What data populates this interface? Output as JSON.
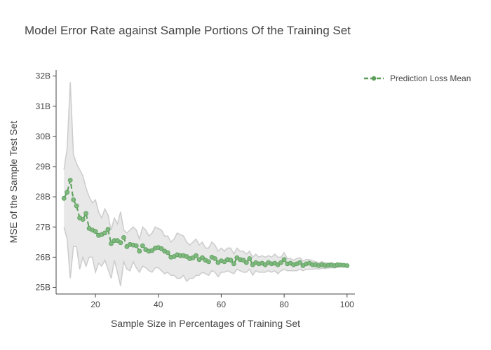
{
  "chart_data": {
    "type": "line",
    "title": "Model Error Rate against Sample Portions Of the Training Set",
    "xlabel": "Sample Size in Percentages of Training Set",
    "ylabel": "MSE of the Sample Test Set",
    "xlim": [
      7.5,
      102.5
    ],
    "ylim": [
      24.78,
      32.2
    ],
    "x_ticks": [
      20,
      40,
      60,
      80,
      100
    ],
    "y_ticks": [
      25,
      26,
      27,
      28,
      29,
      30,
      31,
      32
    ],
    "y_tick_labels": [
      "25B",
      "26B",
      "27B",
      "28B",
      "29B",
      "30B",
      "31B",
      "32B"
    ],
    "grid": false,
    "legend_position": "top-right",
    "series": [
      {
        "name": "Prediction Loss Mean",
        "style": "dashed line with markers",
        "color": "#5a9e5a",
        "x": [
          10,
          11,
          12,
          13,
          14,
          15,
          16,
          17,
          18,
          19,
          20,
          21,
          22,
          23,
          24,
          25,
          26,
          27,
          28,
          29,
          30,
          31,
          32,
          33,
          34,
          35,
          36,
          37,
          38,
          39,
          40,
          41,
          42,
          43,
          44,
          45,
          46,
          47,
          48,
          49,
          50,
          51,
          52,
          53,
          54,
          55,
          56,
          57,
          58,
          59,
          60,
          61,
          62,
          63,
          64,
          65,
          66,
          67,
          68,
          69,
          70,
          71,
          72,
          73,
          74,
          75,
          76,
          77,
          78,
          79,
          80,
          81,
          82,
          83,
          84,
          85,
          86,
          87,
          88,
          89,
          90,
          91,
          92,
          93,
          94,
          95,
          96,
          97,
          98,
          99,
          100
        ],
        "y": [
          27.95,
          28.15,
          28.55,
          27.9,
          27.7,
          27.3,
          27.25,
          27.45,
          26.95,
          26.9,
          26.85,
          26.72,
          26.75,
          26.8,
          26.92,
          26.45,
          26.55,
          26.55,
          26.48,
          26.65,
          26.35,
          26.42,
          26.4,
          26.38,
          26.2,
          26.38,
          26.25,
          26.2,
          26.22,
          26.3,
          26.32,
          26.28,
          26.2,
          26.15,
          26.0,
          26.02,
          26.08,
          26.05,
          26.05,
          26.02,
          25.95,
          25.98,
          26.05,
          25.92,
          25.98,
          25.9,
          25.85,
          26.0,
          25.95,
          25.82,
          25.88,
          25.85,
          25.92,
          25.9,
          25.78,
          25.98,
          25.92,
          25.9,
          25.82,
          25.95,
          25.75,
          25.82,
          25.78,
          25.8,
          25.75,
          25.82,
          25.78,
          25.8,
          25.75,
          25.82,
          25.92,
          25.78,
          25.8,
          25.75,
          25.78,
          25.82,
          25.72,
          25.78,
          25.8,
          25.75,
          25.75,
          25.72,
          25.75,
          25.72,
          25.73,
          25.74,
          25.72,
          25.75,
          25.74,
          25.73,
          25.72
        ]
      }
    ],
    "band": {
      "description": "shaded min/max range around the mean",
      "fill_color": "#e8e8e8",
      "line_color": "#cccccc",
      "x": [
        10,
        11,
        12,
        13,
        14,
        15,
        16,
        17,
        18,
        19,
        20,
        21,
        22,
        23,
        24,
        25,
        26,
        27,
        28,
        29,
        30,
        31,
        32,
        33,
        34,
        35,
        36,
        37,
        38,
        39,
        40,
        41,
        42,
        43,
        44,
        45,
        46,
        47,
        48,
        49,
        50,
        51,
        52,
        53,
        54,
        55,
        56,
        57,
        58,
        59,
        60,
        61,
        62,
        63,
        64,
        65,
        66,
        67,
        68,
        69,
        70,
        71,
        72,
        73,
        74,
        75,
        76,
        77,
        78,
        79,
        80,
        81,
        82,
        83,
        84,
        85,
        86,
        87,
        88,
        89,
        90,
        91,
        92,
        93,
        94,
        95,
        96,
        97,
        98,
        99,
        100
      ],
      "upper": [
        28.9,
        29.6,
        31.8,
        29.4,
        29.1,
        28.9,
        28.7,
        28.3,
        28.0,
        27.8,
        27.9,
        27.5,
        27.3,
        27.6,
        27.4,
        26.9,
        27.3,
        27.1,
        27.5,
        26.9,
        26.8,
        26.9,
        27.0,
        26.9,
        26.6,
        27.0,
        26.9,
        26.7,
        26.8,
        27.0,
        26.95,
        26.9,
        26.7,
        26.7,
        26.5,
        26.6,
        26.8,
        26.75,
        26.7,
        26.5,
        26.4,
        26.5,
        26.6,
        26.4,
        26.5,
        26.3,
        26.3,
        26.5,
        26.4,
        26.2,
        26.3,
        26.2,
        26.3,
        26.3,
        26.1,
        26.3,
        26.2,
        26.2,
        26.1,
        26.2,
        26.0,
        26.1,
        26.0,
        26.05,
        26.0,
        26.05,
        26.0,
        26.1,
        26.0,
        26.0,
        26.15,
        25.95,
        25.95,
        25.9,
        25.95,
        25.98,
        25.88,
        25.92,
        25.92,
        25.88,
        25.85,
        25.82,
        25.85,
        25.82,
        25.8,
        25.82,
        25.78,
        25.8,
        25.78,
        25.76,
        25.74
      ],
      "lower": [
        27.0,
        26.6,
        25.3,
        26.35,
        26.35,
        25.6,
        26.0,
        25.7,
        26.0,
        26.0,
        25.5,
        25.8,
        25.7,
        25.9,
        25.6,
        25.3,
        25.9,
        25.5,
        25.05,
        25.85,
        25.6,
        25.55,
        25.85,
        25.65,
        25.5,
        25.7,
        25.65,
        25.55,
        25.5,
        25.65,
        25.65,
        25.55,
        25.45,
        25.5,
        25.4,
        25.4,
        25.3,
        25.3,
        25.4,
        25.2,
        25.3,
        25.3,
        25.4,
        25.4,
        25.5,
        25.45,
        25.4,
        25.55,
        25.5,
        25.35,
        25.5,
        25.5,
        25.55,
        25.5,
        25.45,
        25.6,
        25.55,
        25.5,
        25.5,
        25.6,
        25.4,
        25.55,
        25.5,
        25.5,
        25.5,
        25.55,
        25.5,
        25.55,
        25.45,
        25.55,
        25.6,
        25.55,
        25.55,
        25.55,
        25.55,
        25.6,
        25.55,
        25.6,
        25.6,
        25.6,
        25.62,
        25.6,
        25.63,
        25.62,
        25.64,
        25.65,
        25.64,
        25.66,
        25.68,
        25.69,
        25.7
      ]
    }
  }
}
